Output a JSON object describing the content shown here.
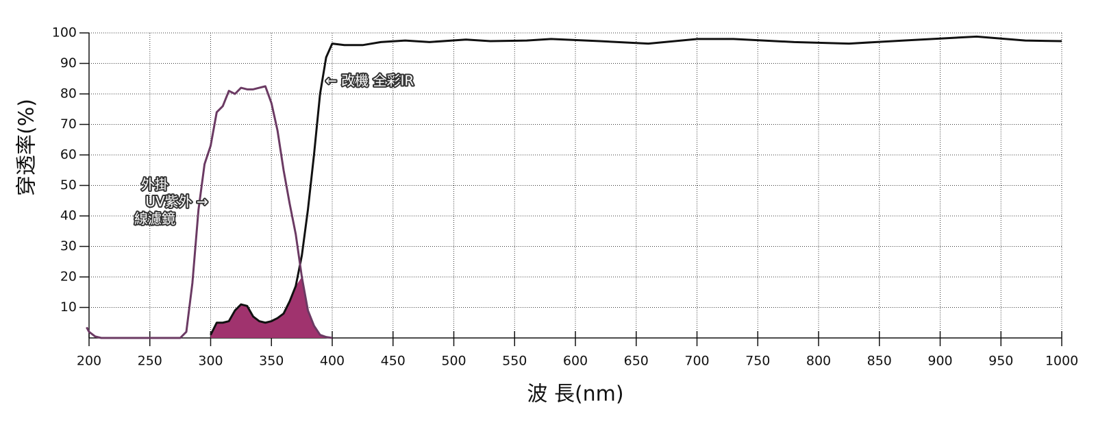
{
  "chart_data": {
    "type": "line",
    "x_label": "波 長(nm)",
    "y_label": "穿透率(%)",
    "x": [
      198,
      200,
      205,
      210,
      220,
      250,
      270,
      275,
      280,
      285,
      290,
      295,
      300,
      305,
      310,
      315,
      320,
      325,
      330,
      335,
      340,
      345,
      350,
      355,
      360,
      365,
      370,
      375,
      380,
      385,
      390,
      395,
      400,
      410,
      425,
      440,
      460,
      480,
      510,
      530,
      560,
      580,
      620,
      660,
      700,
      730,
      780,
      825,
      870,
      930,
      970,
      1000
    ],
    "series": [
      {
        "color": "#111111",
        "values": [
          null,
          null,
          null,
          null,
          null,
          null,
          null,
          null,
          null,
          null,
          null,
          null,
          1,
          5,
          5,
          5.5,
          9,
          11,
          10.5,
          7,
          5.5,
          5,
          5.5,
          6.5,
          8,
          12,
          17,
          27,
          42,
          60,
          80,
          92,
          96.5,
          96,
          96,
          97,
          97.5,
          97,
          97.8,
          97.3,
          97.5,
          98,
          97.3,
          96.5,
          98,
          98,
          97,
          96.5,
          97.5,
          98.8,
          97.5,
          97.3
        ]
      },
      {
        "color": "#6b3a63",
        "values": [
          3.5,
          2,
          0.5,
          0,
          0,
          0,
          0,
          0,
          2,
          18,
          42,
          57,
          63,
          74,
          76,
          81,
          80,
          82,
          81.5,
          81.5,
          82,
          82.5,
          77,
          68,
          55,
          44,
          34,
          20,
          9,
          4,
          1,
          0.3,
          0,
          null,
          null,
          null,
          null,
          null,
          null,
          null,
          null,
          null,
          null,
          null,
          null,
          null,
          null,
          null,
          null,
          null,
          null,
          null
        ]
      }
    ],
    "overlap_color": "#a0336e",
    "annotations": [
      {
        "lines": [
          "← 改機 全彩IR"
        ]
      },
      {
        "lines": [
          "外掛",
          "UV紫外 →",
          "線濾鏡"
        ]
      }
    ],
    "xlim": [
      200,
      1000
    ],
    "ylim": [
      0,
      100
    ],
    "xticks": [
      200,
      250,
      300,
      350,
      400,
      450,
      500,
      550,
      600,
      650,
      700,
      750,
      800,
      850,
      900,
      950,
      1000
    ],
    "yticks": [
      10,
      20,
      30,
      40,
      50,
      60,
      70,
      80,
      90,
      100
    ],
    "grid": true
  }
}
